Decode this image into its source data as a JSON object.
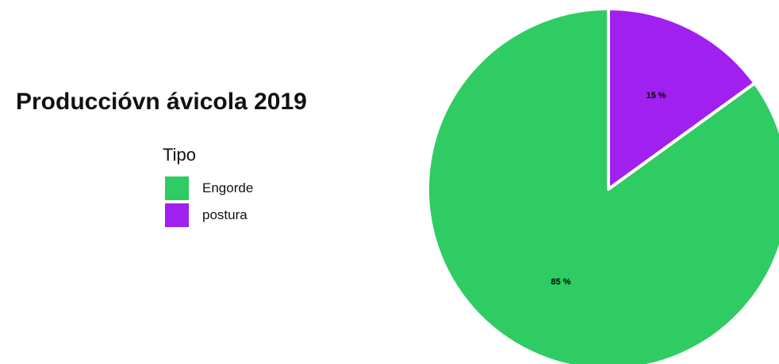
{
  "chart_data": {
    "type": "pie",
    "title": "Produccióvn ávicola 2019",
    "legend_title": "Tipo",
    "legend_position": "left",
    "categories": [
      "Engorde",
      "postura"
    ],
    "values": [
      85,
      15
    ],
    "labels": [
      "85 %",
      "15 %"
    ],
    "colors": [
      "#2ecc63",
      "#a020f0"
    ],
    "slice_border_color": "#ffffff"
  }
}
